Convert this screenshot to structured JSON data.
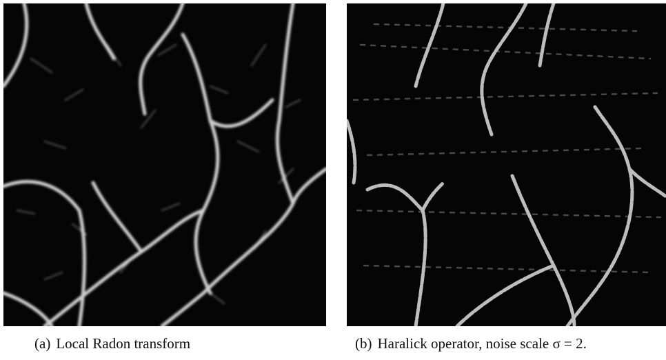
{
  "figures": [
    {
      "label": "(a)",
      "caption": "Local Radon transform"
    },
    {
      "label": "(b)",
      "caption": "Haralick operator, noise scale σ = 2."
    }
  ]
}
